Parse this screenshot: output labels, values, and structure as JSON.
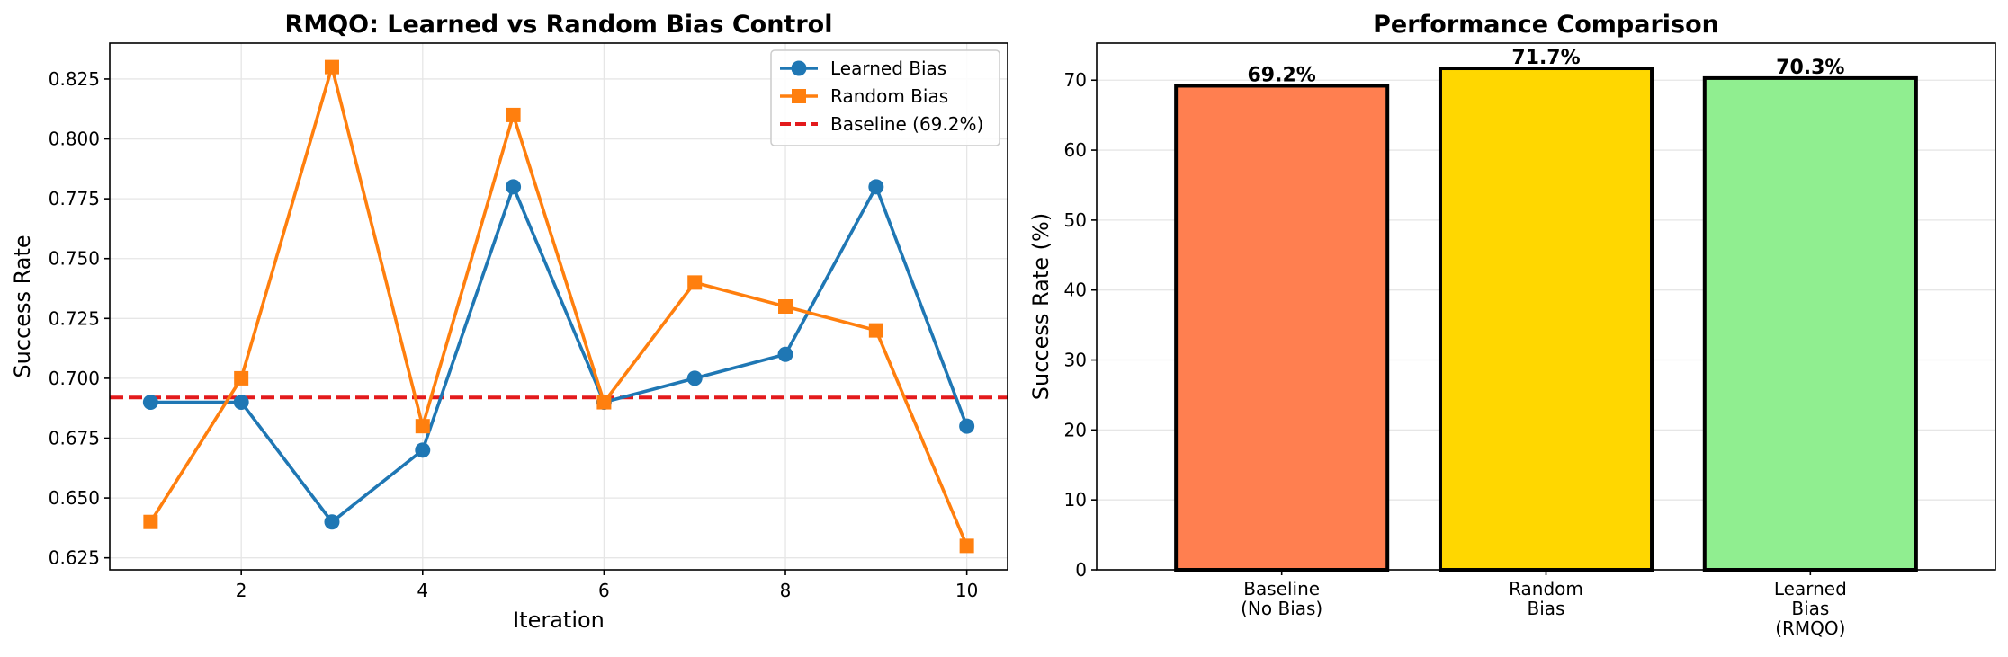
{
  "chart_data": [
    {
      "type": "line",
      "title": "RMQO: Learned vs Random Bias Control",
      "xlabel": "Iteration",
      "ylabel": "Success Rate",
      "xlim": [
        0.55,
        10.45
      ],
      "ylim": [
        0.62,
        0.84
      ],
      "xticks": [
        2,
        4,
        6,
        8,
        10
      ],
      "yticks": [
        0.625,
        0.65,
        0.675,
        0.7,
        0.725,
        0.75,
        0.775,
        0.8,
        0.825
      ],
      "ytick_labels": [
        "0.625",
        "0.650",
        "0.675",
        "0.700",
        "0.725",
        "0.750",
        "0.775",
        "0.800",
        "0.825"
      ],
      "grid": true,
      "legend_position": "top-right",
      "x": [
        1,
        2,
        3,
        4,
        5,
        6,
        7,
        8,
        9,
        10
      ],
      "series": [
        {
          "name": "Learned Bias",
          "color": "#1f77b4",
          "marker": "circle",
          "values": [
            0.69,
            0.69,
            0.64,
            0.67,
            0.78,
            0.69,
            0.7,
            0.71,
            0.78,
            0.68
          ]
        },
        {
          "name": "Random Bias",
          "color": "#ff7f0e",
          "marker": "square",
          "values": [
            0.64,
            0.7,
            0.83,
            0.68,
            0.81,
            0.69,
            0.74,
            0.73,
            0.72,
            0.63
          ]
        }
      ],
      "reference_line": {
        "name": "Baseline (69.2%)",
        "value": 0.692,
        "color": "#e31a1c",
        "style": "dashed"
      }
    },
    {
      "type": "bar",
      "title": "Performance Comparison",
      "xlabel": "",
      "ylabel": "Success Rate (%)",
      "ylim": [
        0,
        75.3
      ],
      "yticks": [
        0,
        10,
        20,
        30,
        40,
        50,
        60,
        70
      ],
      "grid": true,
      "categories": [
        [
          "Baseline",
          "(No Bias)"
        ],
        [
          "Random",
          "Bias"
        ],
        [
          "Learned",
          "Bias",
          "(RMQO)"
        ]
      ],
      "values": [
        69.2,
        71.7,
        70.3
      ],
      "value_labels": [
        "69.2%",
        "71.7%",
        "70.3%"
      ],
      "colors": [
        "#ff7f50",
        "#ffd700",
        "#90ee90"
      ]
    }
  ]
}
